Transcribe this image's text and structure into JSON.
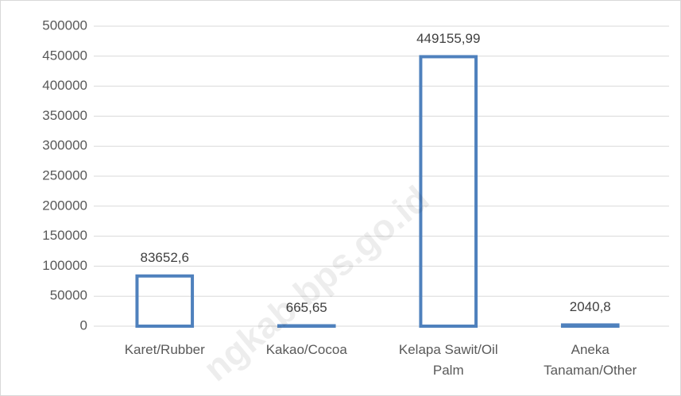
{
  "chart_data": {
    "type": "bar",
    "categories": [
      "Karet/Rubber",
      "Kakao/Cocoa",
      "Kelapa Sawit/Oil Palm",
      "Aneka Tanaman/Other"
    ],
    "values": [
      83652.6,
      665.65,
      449155.99,
      2040.8
    ],
    "value_labels": [
      "83652,6",
      "665,65",
      "449155,99",
      "2040,8"
    ],
    "color": "#4f81bd",
    "ylim": [
      0,
      500000
    ],
    "yticks": [
      0,
      50000,
      100000,
      150000,
      200000,
      250000,
      300000,
      350000,
      400000,
      450000,
      500000
    ],
    "grid": true,
    "watermark": "ngkab.bps.go.id"
  }
}
